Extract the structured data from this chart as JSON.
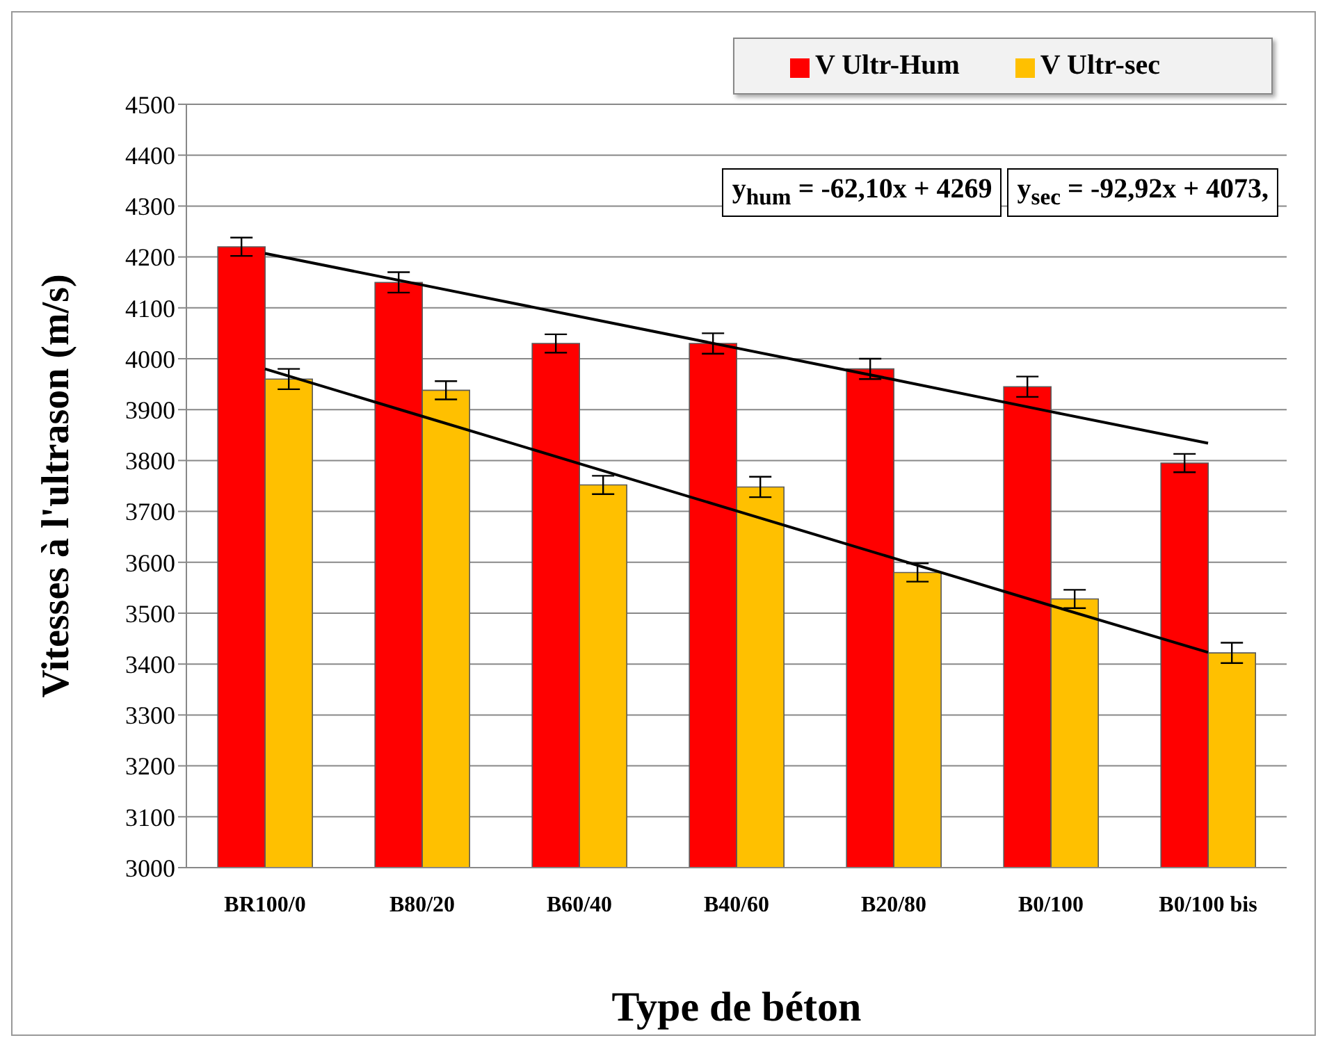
{
  "chart_data": {
    "type": "bar",
    "xlabel": "Type de béton",
    "ylabel": "Vitesses à l'ultrason (m/s)",
    "categories": [
      "BR100/0",
      "B80/20",
      "B60/40",
      "B40/60",
      "B20/80",
      "B0/100",
      "B0/100 bis"
    ],
    "series": [
      {
        "name": "V Ultr-Hum",
        "color": "#ff0000",
        "values": [
          4220,
          4150,
          4030,
          4030,
          3980,
          3945,
          3795
        ],
        "errors": [
          18,
          20,
          18,
          20,
          20,
          20,
          18
        ]
      },
      {
        "name": "V Ultr-sec",
        "color": "#ffc000",
        "values": [
          3960,
          3938,
          3752,
          3748,
          3580,
          3528,
          3422
        ],
        "errors": [
          20,
          18,
          18,
          20,
          18,
          18,
          20
        ]
      },
      {
        "type": "line",
        "color": "#000000",
        "values": [
          4207,
          4145,
          4083,
          4021,
          3959,
          3896,
          3834
        ]
      },
      {
        "type": "line",
        "color": "#000000",
        "values": [
          3980,
          3887,
          3794,
          3701,
          3608,
          3515,
          3423
        ]
      }
    ],
    "ylim": [
      3000,
      4500
    ],
    "yticks": [
      3000,
      3100,
      3200,
      3300,
      3400,
      3500,
      3600,
      3700,
      3800,
      3900,
      4000,
      4100,
      4200,
      4300,
      4400,
      4500
    ],
    "grid": "y",
    "legend": "top right",
    "annotations": [
      "y$_{hum}$ = -62,10x + 4269",
      "y$_{sec}$ = -92,92x + 4073,"
    ]
  }
}
